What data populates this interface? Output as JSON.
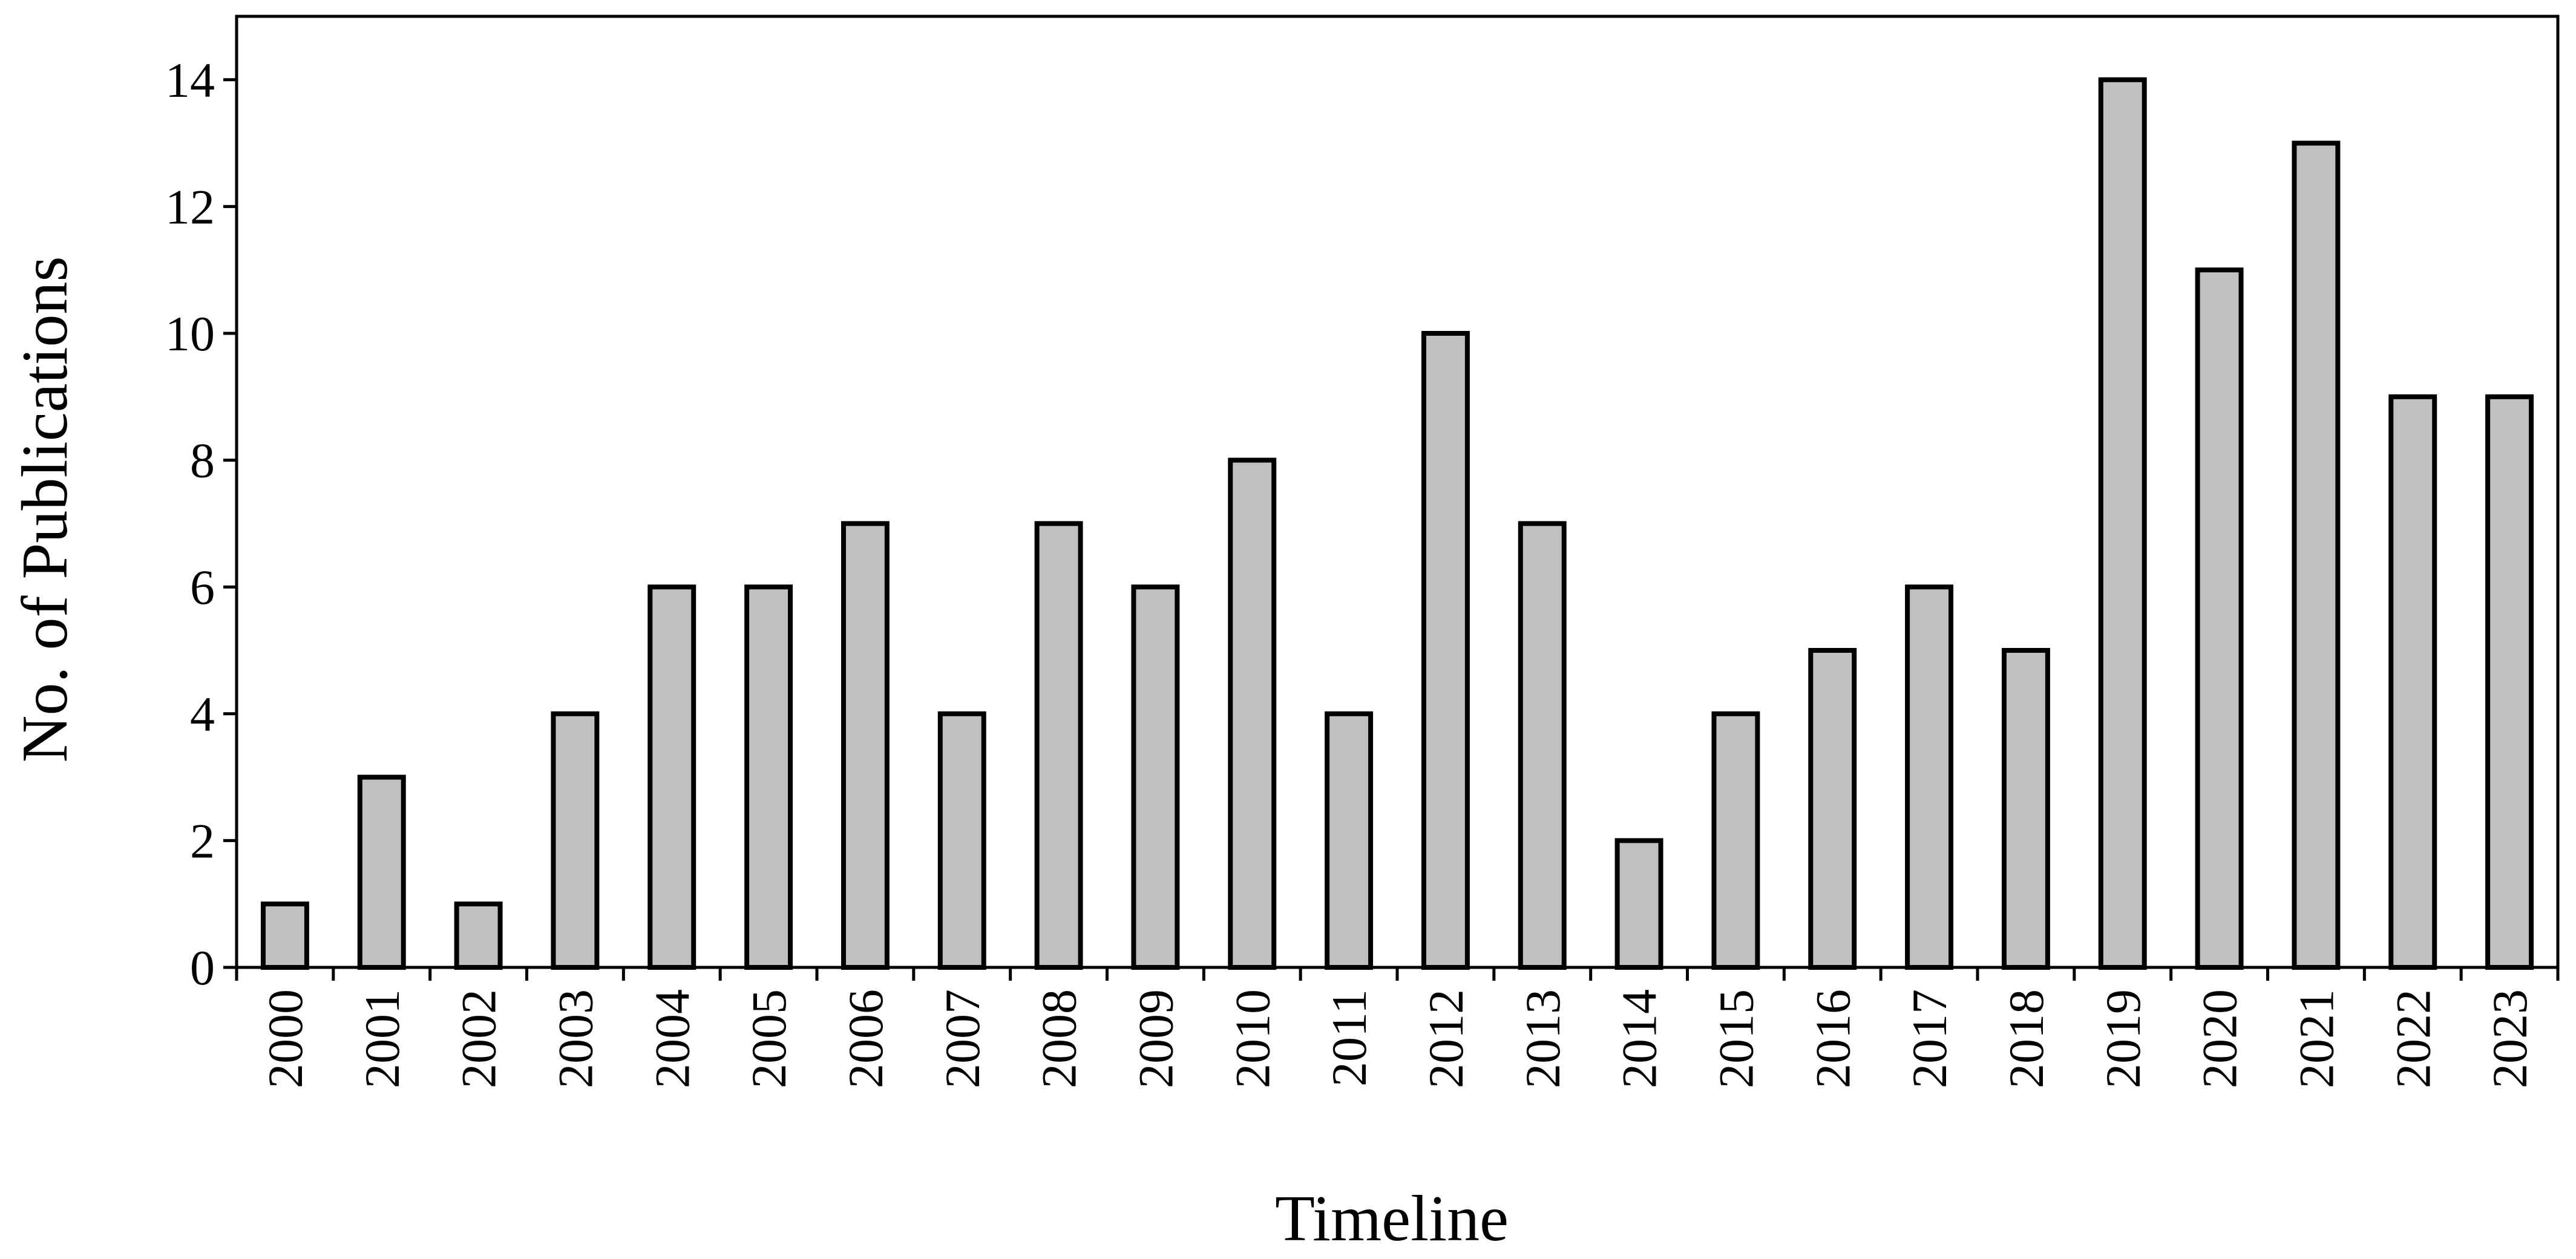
{
  "chart_data": {
    "type": "bar",
    "x_label": "Timeline",
    "y_label": "No. of Publications",
    "categories": [
      "2000",
      "2001",
      "2002",
      "2003",
      "2004",
      "2005",
      "2006",
      "2007",
      "2008",
      "2009",
      "2010",
      "2011",
      "2012",
      "2013",
      "2014",
      "2015",
      "2016",
      "2017",
      "2018",
      "2019",
      "2020",
      "2021",
      "2022",
      "2023"
    ],
    "values": [
      1,
      3,
      1,
      4,
      6,
      6,
      7,
      4,
      7,
      6,
      8,
      4,
      10,
      7,
      2,
      4,
      5,
      6,
      5,
      14,
      11,
      13,
      9,
      9
    ],
    "color": "#c0c0c0",
    "ylim": [
      0,
      15
    ],
    "yticks": [
      0,
      2,
      4,
      6,
      8,
      10,
      12,
      14
    ],
    "grid": false
  }
}
